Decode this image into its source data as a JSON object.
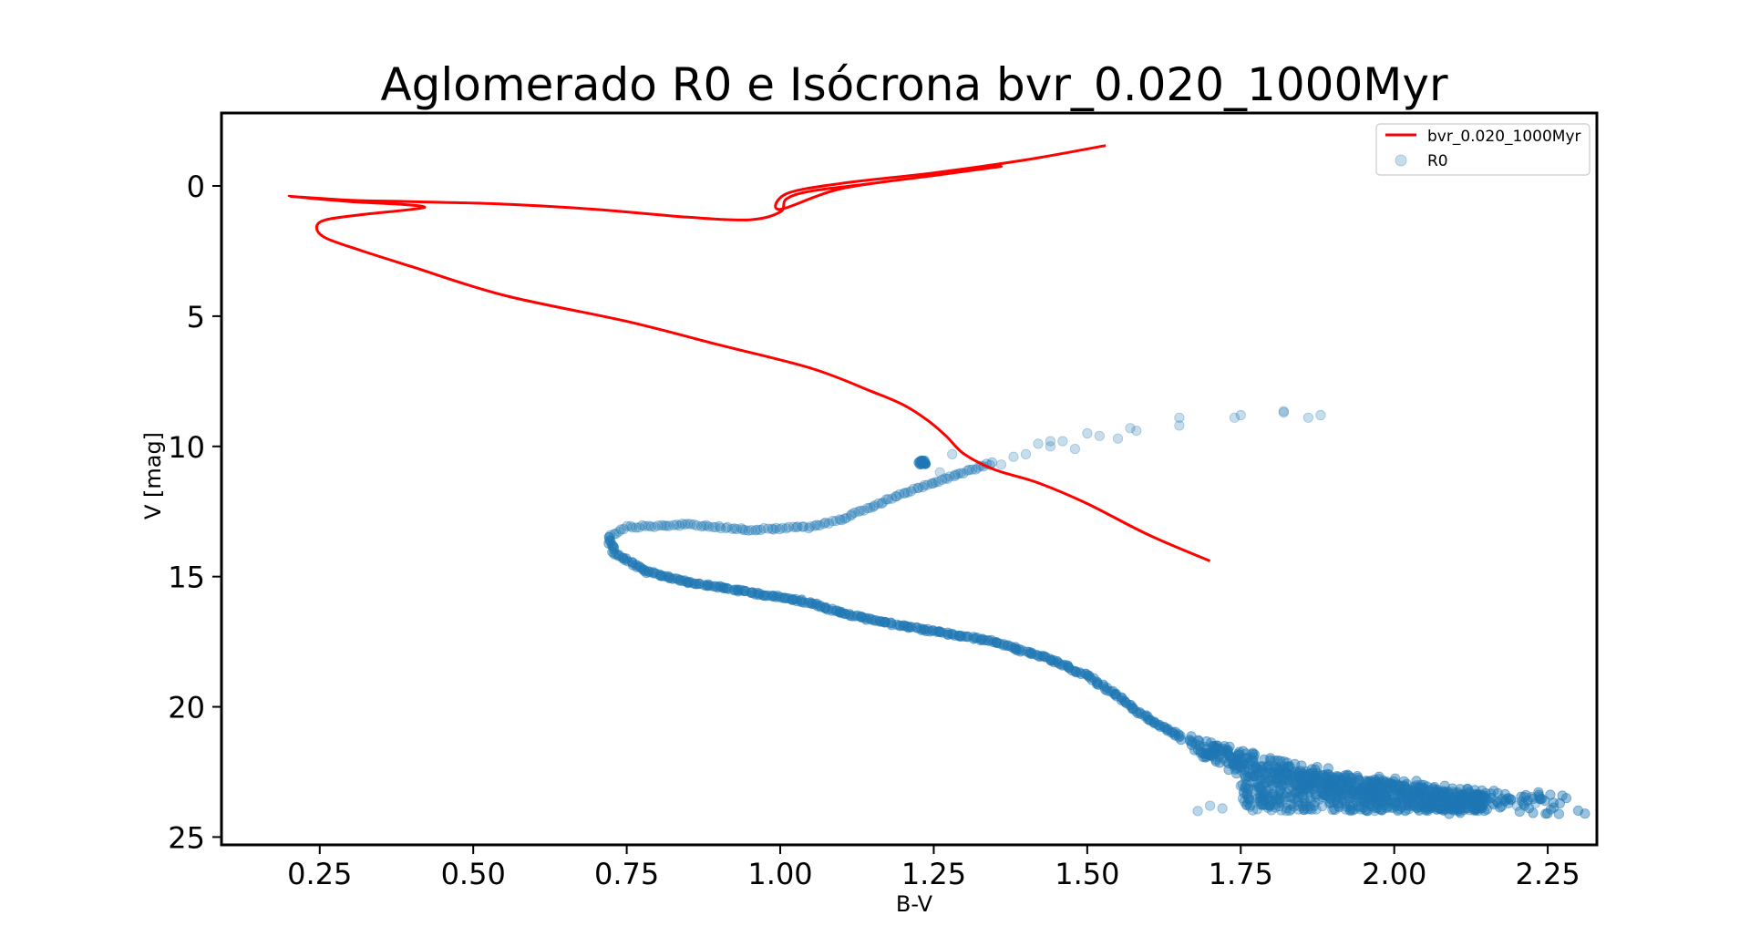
{
  "chart_data": {
    "type": "scatter",
    "title": "Aglomerado R0 e Isócrona bvr_0.020_1000Myr",
    "xlabel": "B-V",
    "ylabel": "V [mag]",
    "xlim": [
      0.09,
      2.33
    ],
    "ylim": [
      25.3,
      -2.8
    ],
    "y_inverted": true,
    "xticks": [
      "0.25",
      "0.50",
      "0.75",
      "1.00",
      "1.25",
      "1.50",
      "1.75",
      "2.00",
      "2.25"
    ],
    "yticks": [
      "0",
      "5",
      "10",
      "15",
      "20",
      "25"
    ],
    "legend_position": "upper right",
    "colors": {
      "isochrone": "#ff0000",
      "cluster": "#1f77b4"
    },
    "series": [
      {
        "name": "bvr_0.020_1000Myr",
        "kind": "line",
        "x": [
          1.7,
          1.6,
          1.5,
          1.42,
          1.35,
          1.3,
          1.27,
          1.24,
          1.2,
          1.15,
          1.05,
          0.9,
          0.75,
          0.55,
          0.4,
          0.32,
          0.26,
          0.245,
          0.26,
          0.32,
          0.4,
          0.42,
          0.38,
          0.3,
          0.2,
          0.3,
          0.4,
          0.55,
          0.7,
          0.85,
          0.95,
          1.0,
          1.01,
          1.05,
          1.15,
          1.25,
          1.36,
          1.25,
          1.1,
          1.0,
          1.01,
          1.1,
          1.25,
          1.4,
          1.53
        ],
        "y": [
          14.4,
          13.4,
          12.2,
          11.4,
          10.9,
          10.3,
          9.6,
          9.0,
          8.4,
          7.9,
          7.0,
          6.1,
          5.2,
          4.2,
          3.1,
          2.5,
          2.0,
          1.6,
          1.3,
          1.1,
          0.9,
          0.8,
          0.7,
          0.6,
          0.4,
          0.55,
          0.6,
          0.7,
          0.9,
          1.2,
          1.3,
          1.0,
          0.5,
          0.2,
          -0.1,
          -0.4,
          -0.75,
          -0.4,
          0.1,
          0.9,
          0.3,
          -0.1,
          -0.5,
          -1.0,
          -1.55
        ]
      },
      {
        "name": "R0",
        "kind": "scatter",
        "ridge": {
          "x": [
            0.72,
            0.73,
            0.78,
            0.85,
            0.95,
            1.05,
            1.1,
            1.2,
            1.35,
            1.4,
            1.43,
            1.5,
            1.55,
            1.6,
            1.65,
            1.7,
            1.75,
            1.8,
            1.9,
            2.0,
            2.1,
            2.2
          ],
          "y": [
            13.5,
            14.1,
            14.8,
            15.2,
            15.6,
            16.0,
            16.4,
            16.9,
            17.5,
            17.9,
            18.1,
            18.8,
            19.6,
            20.5,
            21.1,
            21.6,
            22.0,
            22.4,
            22.9,
            23.3,
            23.6,
            23.8
          ]
        },
        "upper_branch": {
          "x": [
            0.72,
            0.75,
            0.85,
            0.95,
            1.05,
            1.1,
            1.15,
            1.2,
            1.25,
            1.3,
            1.35
          ],
          "y": [
            13.5,
            13.1,
            13.0,
            13.2,
            13.1,
            12.8,
            12.3,
            11.8,
            11.4,
            11.0,
            10.6
          ]
        },
        "red_clump": {
          "x": [
            1.225,
            1.24
          ],
          "y": [
            10.6,
            10.6
          ]
        },
        "giant_points": {
          "x": [
            1.38,
            1.4,
            1.44,
            1.46,
            1.48,
            1.5,
            1.52,
            1.55,
            1.57,
            1.58,
            1.65,
            1.65,
            1.74,
            1.75,
            1.82,
            1.82,
            1.86,
            1.88,
            1.44,
            1.42,
            1.36,
            1.28,
            1.26
          ],
          "y": [
            10.4,
            10.3,
            9.8,
            9.8,
            10.1,
            9.5,
            9.6,
            9.7,
            9.3,
            9.4,
            9.2,
            8.9,
            8.9,
            8.8,
            8.7,
            8.65,
            8.9,
            8.8,
            10.0,
            9.9,
            10.7,
            10.3,
            11.0
          ]
        },
        "faint_spread": {
          "x": [
            1.68,
            1.7,
            1.72,
            1.76,
            2.13,
            2.16,
            2.18,
            2.2,
            2.23
          ],
          "y": [
            24.0,
            23.8,
            23.9,
            23.0,
            23.5,
            23.7,
            23.6,
            23.8,
            23.7
          ]
        }
      }
    ]
  }
}
